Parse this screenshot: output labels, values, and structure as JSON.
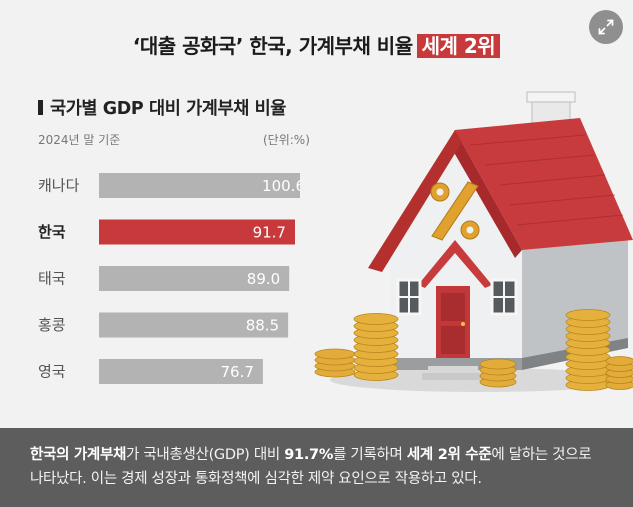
{
  "header": {
    "title_main": "‘대출 공화국’ 한국, 가계부채 비율",
    "title_highlight": "세계 2위"
  },
  "chart_data": {
    "type": "bar",
    "orientation": "horizontal",
    "title": "국가별 GDP 대비 가계부채 비율",
    "subtitle": "2024년 말 기준",
    "unit_note": "(단위:%)",
    "categories": [
      "캐나다",
      "한국",
      "태국",
      "홍콩",
      "영국"
    ],
    "values": [
      100.6,
      91.7,
      89.0,
      88.5,
      76.7
    ],
    "value_labels": [
      "100.6",
      "91.7",
      "89.0",
      "88.5",
      "76.7"
    ],
    "highlight": "한국",
    "bar_color": "#b3b3b3",
    "highlight_color": "#c8393b",
    "label_highlight_color": "#222222",
    "xlim": [
      0,
      100.6
    ],
    "grid": false,
    "legend": "none"
  },
  "caption": {
    "part1_bold": "한국의 가계부채",
    "part2": "가 국내총생산(GDP) 대비 ",
    "part3_bold": "91.7%",
    "part4": "를 기록하며 ",
    "part5_bold": "세계 2위 수준",
    "part6": "에 달하는 것으로 나타났다. 이는 경제 성장과 통화정책에 심각한 제약 요인으로 작용하고 있다."
  },
  "icons": {
    "expand": "expand-icon",
    "illustration": "house-with-coins"
  }
}
